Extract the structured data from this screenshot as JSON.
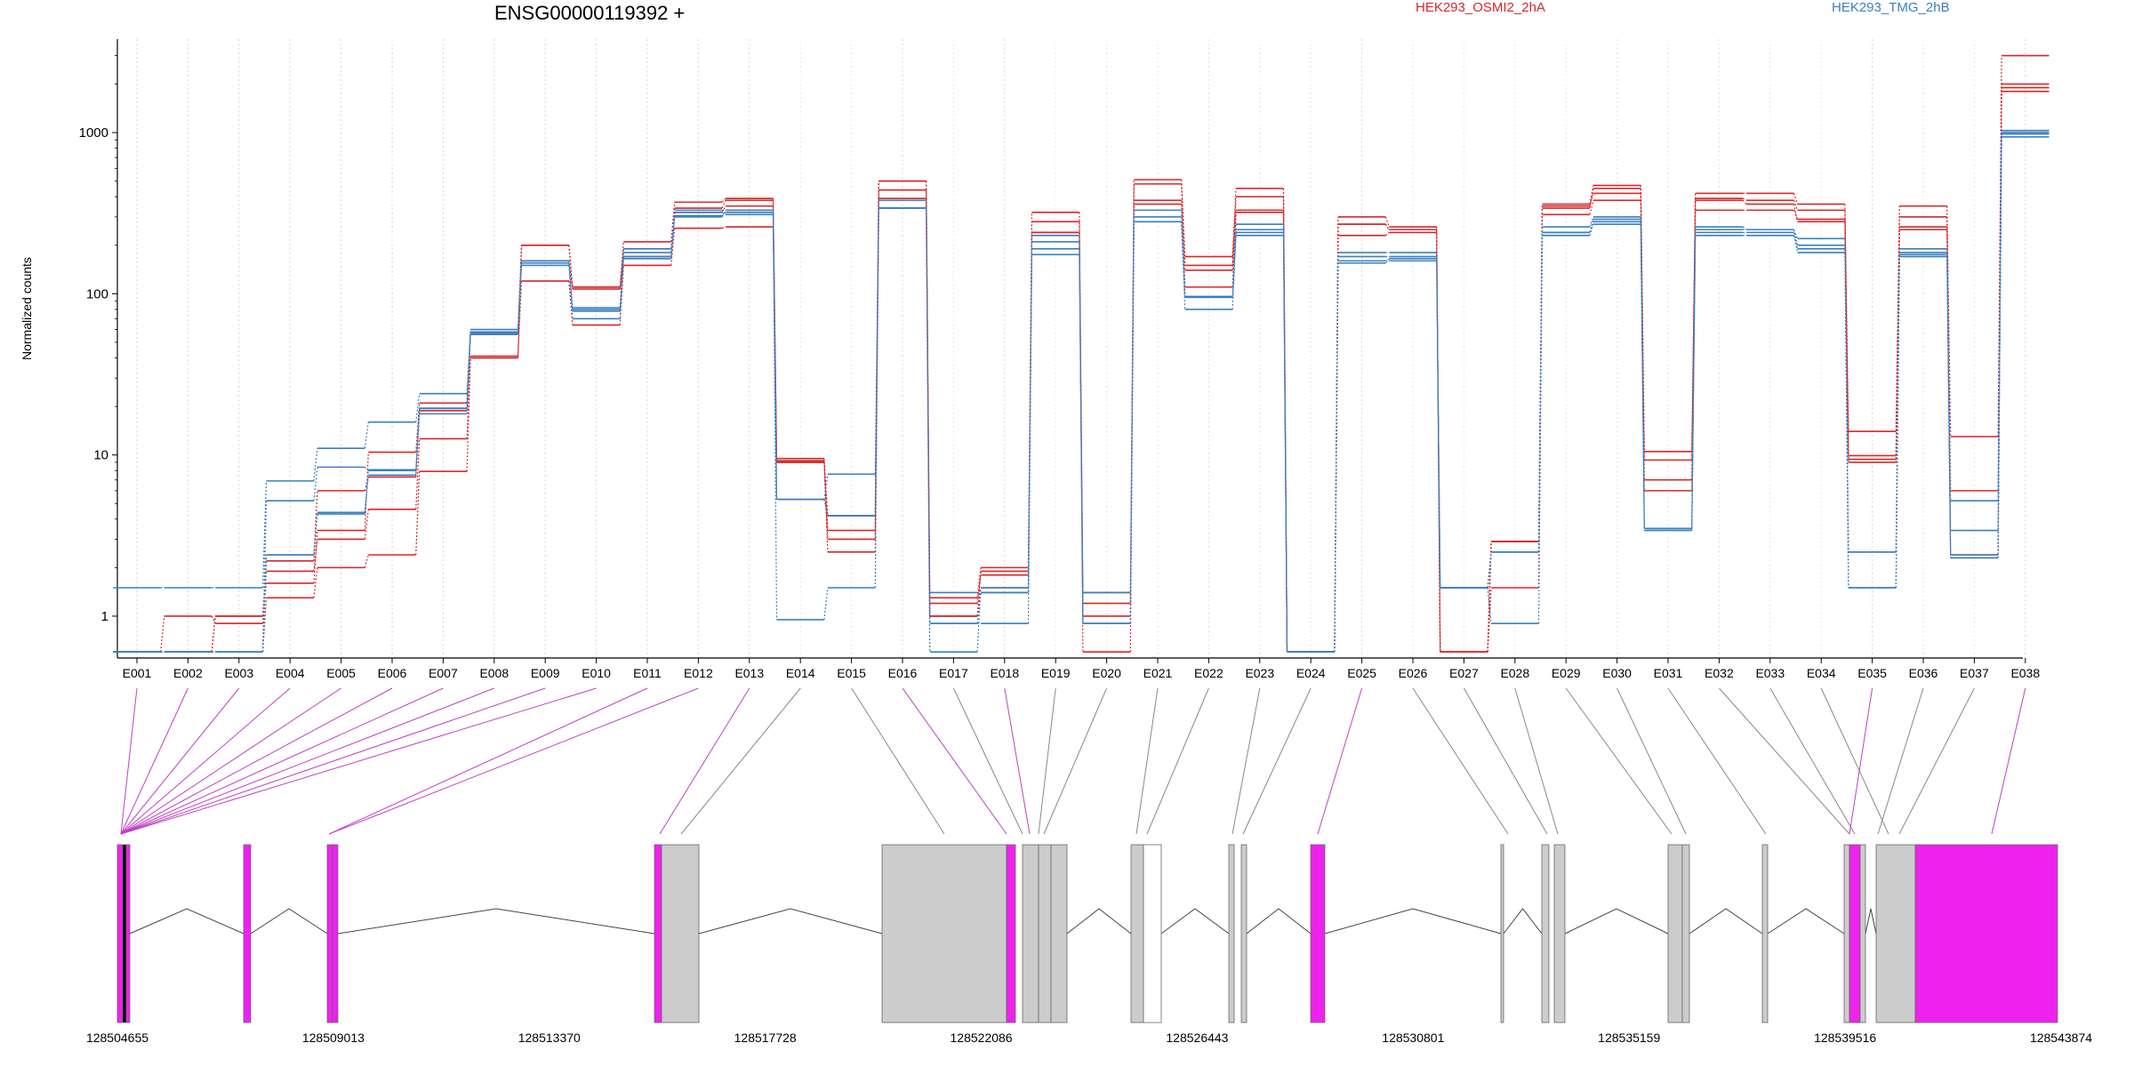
{
  "chart_data": {
    "type": "line",
    "title": "ENSG00000119392 +",
    "ylabel": "Normalized counts",
    "xlabel": "",
    "yscale": "log",
    "ylim": [
      0.55,
      3800
    ],
    "yticks": [
      "1",
      "10",
      "100",
      "1000"
    ],
    "grid": "vertical dotted at each exon",
    "legend": [
      {
        "name": "HEK293_OSMI2_2hA",
        "color": "#d62728"
      },
      {
        "name": "HEK293_TMG_2hB",
        "color": "#3a7fc1"
      }
    ],
    "categories": [
      "E001",
      "E002",
      "E003",
      "E004",
      "E005",
      "E006",
      "E007",
      "E008",
      "E009",
      "E010",
      "E011",
      "E012",
      "E013",
      "E014",
      "E015",
      "E016",
      "E017",
      "E018",
      "E019",
      "E020",
      "E021",
      "E022",
      "E023",
      "E024",
      "E025",
      "E026",
      "E027",
      "E028",
      "E029",
      "E030",
      "E031",
      "E032",
      "E033",
      "E034",
      "E035",
      "E036",
      "E037",
      "E038"
    ],
    "series": [
      {
        "group": "HEK293_OSMI2_2hA",
        "color": "#d62728",
        "values": [
          0.6,
          0.6,
          0.6,
          1.3,
          2.0,
          2.4,
          7.9,
          40,
          120,
          64,
          150,
          255,
          260,
          9.5,
          3.4,
          500,
          1.3,
          2.0,
          320,
          0.6,
          510,
          150,
          400,
          0.6,
          300,
          260,
          0.6,
          2.9,
          360,
          470,
          10.5,
          420,
          420,
          360,
          14,
          350,
          13,
          3000
        ]
      },
      {
        "group": "HEK293_OSMI2_2hA",
        "color": "#d62728",
        "values": [
          0.6,
          1.0,
          0.9,
          1.9,
          3.0,
          4.6,
          12.6,
          41,
          200,
          110,
          210,
          370,
          390,
          9.2,
          3.0,
          440,
          1.2,
          1.8,
          280,
          1.2,
          480,
          170,
          450,
          0.6,
          270,
          250,
          0.6,
          2.9,
          340,
          450,
          9.3,
          390,
          380,
          330,
          9.9,
          300,
          6.0,
          2000
        ]
      },
      {
        "group": "HEK293_OSMI2_2hA",
        "color": "#d62728",
        "values": [
          0.6,
          0.6,
          1.0,
          2.2,
          6.0,
          7.3,
          18.8,
          58,
          200,
          107,
          190,
          340,
          380,
          9.0,
          2.5,
          390,
          1.0,
          1.5,
          240,
          1.0,
          360,
          140,
          330,
          0.6,
          230,
          240,
          0.6,
          2.9,
          310,
          380,
          6.0,
          330,
          330,
          290,
          9.4,
          250,
          2.3,
          1800
        ]
      },
      {
        "group": "HEK293_OSMI2_2hA",
        "color": "#d62728",
        "values": [
          0.6,
          0.6,
          1.0,
          1.6,
          3.4,
          10.4,
          21,
          56,
          160,
          110,
          170,
          320,
          350,
          9.0,
          4.2,
          500,
          1.0,
          1.9,
          240,
          1.4,
          380,
          110,
          320,
          0.6,
          270,
          250,
          0.6,
          1.5,
          350,
          420,
          7.0,
          380,
          360,
          280,
          9.0,
          260,
          2.4,
          1900
        ]
      },
      {
        "group": "HEK293_TMG_2hB",
        "color": "#3a7fc1",
        "values": [
          1.5,
          1.5,
          1.5,
          6.9,
          11,
          16,
          24,
          60,
          160,
          78,
          190,
          320,
          310,
          5.3,
          7.6,
          340,
          1.4,
          1.4,
          190,
          1.4,
          300,
          96,
          250,
          0.6,
          160,
          160,
          1.5,
          0.9,
          240,
          280,
          3.5,
          260,
          250,
          220,
          1.5,
          180,
          5.2,
          1030
        ]
      },
      {
        "group": "HEK293_TMG_2hB",
        "color": "#3a7fc1",
        "values": [
          0.6,
          0.6,
          0.6,
          5.2,
          8.4,
          8.0,
          19.5,
          57,
          160,
          82,
          170,
          300,
          330,
          5.3,
          4.2,
          380,
          0.9,
          0.9,
          230,
          0.9,
          330,
          95,
          270,
          0.6,
          180,
          180,
          1.5,
          2.5,
          260,
          300,
          3.5,
          250,
          250,
          200,
          2.5,
          190,
          3.4,
          1000
        ]
      },
      {
        "group": "HEK293_TMG_2hB",
        "color": "#3a7fc1",
        "values": [
          0.6,
          0.6,
          0.6,
          2.4,
          4.3,
          7.5,
          19.4,
          56,
          150,
          80,
          165,
          305,
          320,
          5.3,
          4.2,
          340,
          0.9,
          1.4,
          210,
          0.9,
          280,
          80,
          240,
          0.6,
          170,
          170,
          1.5,
          2.5,
          240,
          290,
          3.5,
          240,
          240,
          190,
          2.5,
          175,
          2.3,
          940
        ]
      },
      {
        "group": "HEK293_TMG_2hB",
        "color": "#3a7fc1",
        "values": [
          0.6,
          0.6,
          0.6,
          2.4,
          4.4,
          8.1,
          18,
          58,
          155,
          70,
          180,
          330,
          330,
          0.95,
          1.5,
          340,
          0.6,
          1.5,
          175,
          0.9,
          280,
          96,
          230,
          0.6,
          155,
          165,
          1.5,
          2.5,
          230,
          270,
          3.4,
          230,
          230,
          180,
          1.5,
          170,
          2.4,
          980
        ]
      }
    ],
    "exon_highlight": [
      "E001",
      "E002",
      "E003",
      "E004",
      "E005",
      "E006",
      "E007",
      "E008",
      "E009",
      "E010",
      "E011",
      "E012",
      "E013",
      "E016",
      "E018",
      "E025",
      "E035",
      "E038"
    ],
    "genomic_axis": {
      "labels": [
        "128504655",
        "128509013",
        "128513370",
        "128517728",
        "128522086",
        "128526443",
        "128530801",
        "128535159",
        "128539516",
        "128543874"
      ]
    }
  }
}
